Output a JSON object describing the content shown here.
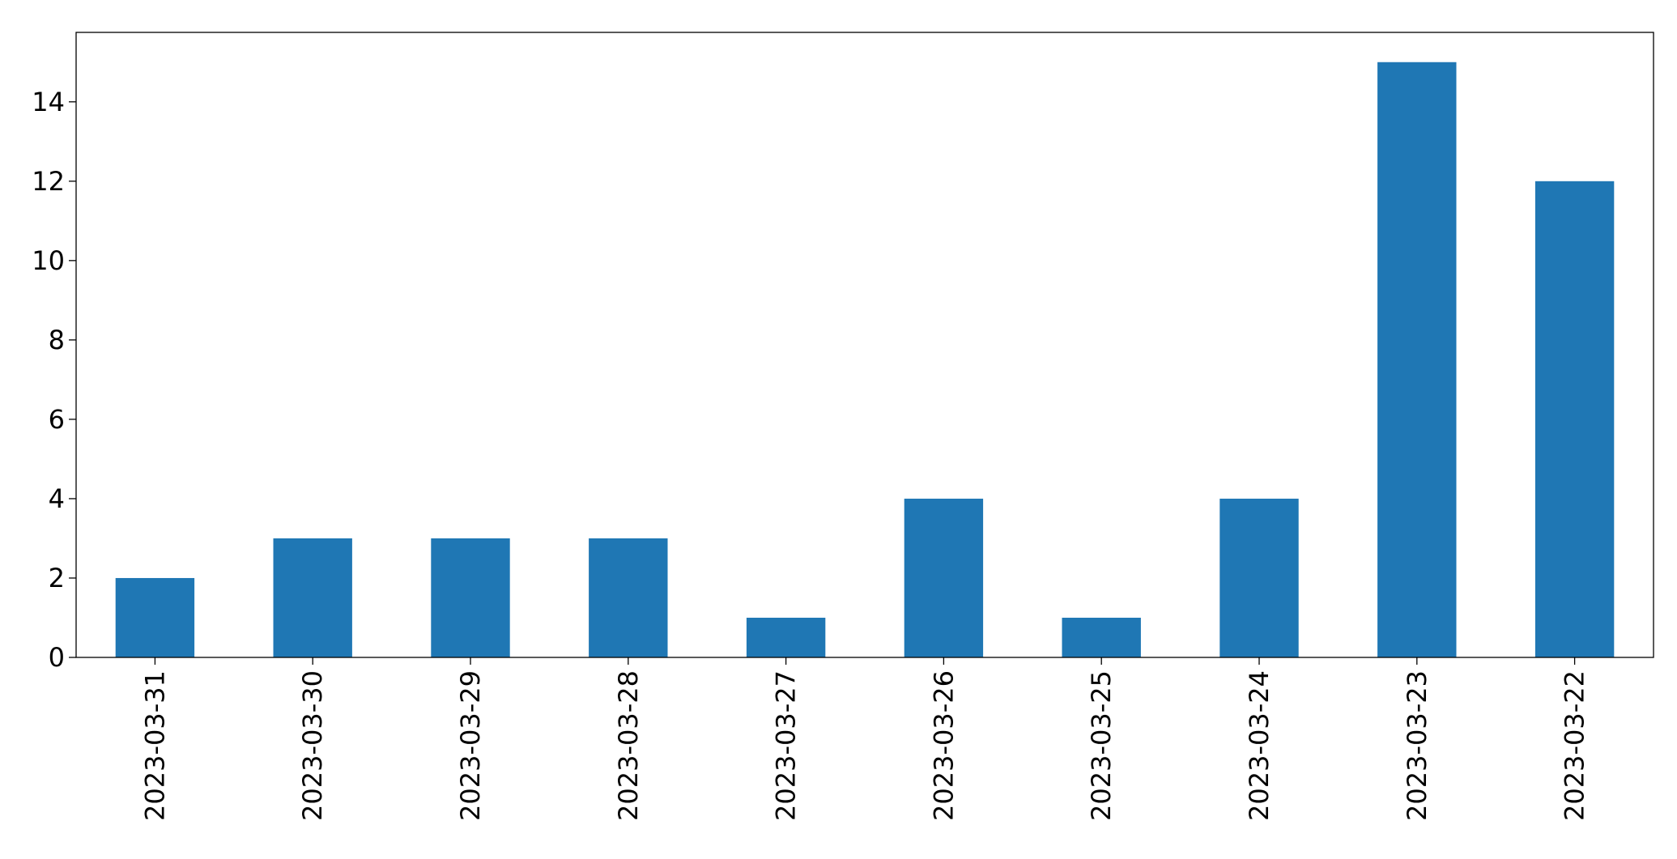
{
  "chart_data": {
    "type": "bar",
    "categories": [
      "2023-03-31",
      "2023-03-30",
      "2023-03-29",
      "2023-03-28",
      "2023-03-27",
      "2023-03-26",
      "2023-03-25",
      "2023-03-24",
      "2023-03-23",
      "2023-03-22"
    ],
    "values": [
      2,
      3,
      3,
      3,
      1,
      4,
      1,
      4,
      15,
      12
    ],
    "color": "#1f77b4",
    "ylim": [
      0,
      15.75
    ],
    "yticks": [
      0,
      2,
      4,
      6,
      8,
      10,
      12,
      14
    ],
    "grid": false
  }
}
